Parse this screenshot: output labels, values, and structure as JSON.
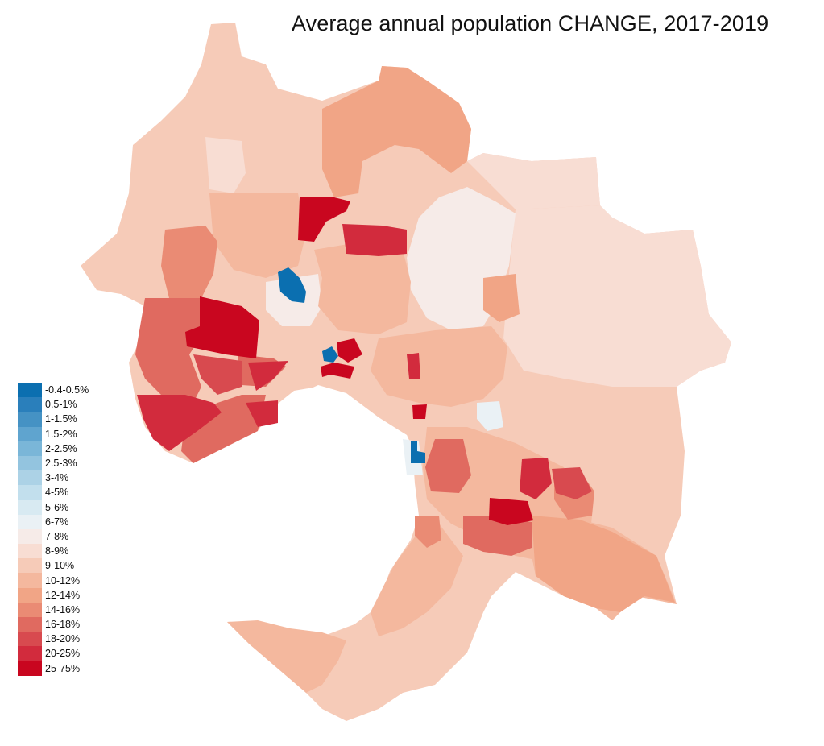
{
  "title": "Average annual population CHANGE, 2017-2019",
  "legend": {
    "items": [
      {
        "label": "-0.4-0.5%",
        "color": "#0b6fb0"
      },
      {
        "label": "0.5-1%",
        "color": "#2a7fbb"
      },
      {
        "label": "1-1.5%",
        "color": "#4592c4"
      },
      {
        "label": "1.5-2%",
        "color": "#5fa4cf"
      },
      {
        "label": "2-2.5%",
        "color": "#7ab6d8"
      },
      {
        "label": "2.5-3%",
        "color": "#93c4df"
      },
      {
        "label": "3-4%",
        "color": "#acd2e6"
      },
      {
        "label": "4-5%",
        "color": "#c2dfed"
      },
      {
        "label": "5-6%",
        "color": "#d8eaf2"
      },
      {
        "label": "6-7%",
        "color": "#eaf1f5"
      },
      {
        "label": "7-8%",
        "color": "#f6ebe8"
      },
      {
        "label": "8-9%",
        "color": "#f8ddd3"
      },
      {
        "label": "9-10%",
        "color": "#f6cbb8"
      },
      {
        "label": "10-12%",
        "color": "#f4b89e"
      },
      {
        "label": "12-14%",
        "color": "#f1a586"
      },
      {
        "label": "14-16%",
        "color": "#ea8b74"
      },
      {
        "label": "16-18%",
        "color": "#e06a60"
      },
      {
        "label": "18-20%",
        "color": "#d84a4f"
      },
      {
        "label": "20-25%",
        "color": "#d22b3d"
      },
      {
        "label": "25-75%",
        "color": "#c9061f"
      }
    ]
  }
}
